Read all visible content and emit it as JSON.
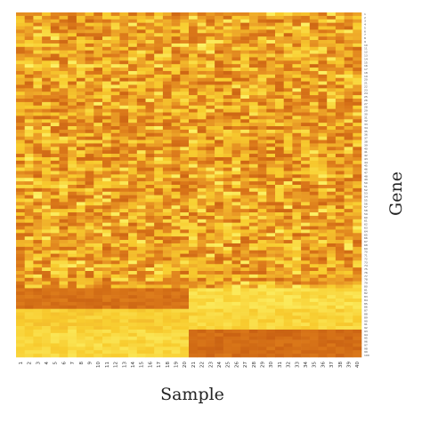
{
  "chart_data": {
    "type": "heatmap",
    "title": "",
    "xlabel": "Sample",
    "ylabel": "Gene",
    "x_categories": [
      "1",
      "2",
      "3",
      "4",
      "5",
      "6",
      "7",
      "8",
      "9",
      "10",
      "11",
      "12",
      "13",
      "14",
      "15",
      "16",
      "17",
      "18",
      "19",
      "20",
      "21",
      "22",
      "23",
      "24",
      "25",
      "26",
      "27",
      "28",
      "29",
      "30",
      "31",
      "32",
      "33",
      "34",
      "35",
      "36",
      "37",
      "38",
      "39",
      "40"
    ],
    "y_categories": [
      "1",
      "2",
      "3",
      "4",
      "5",
      "6",
      "7",
      "8",
      "9",
      "10",
      "11",
      "12",
      "13",
      "14",
      "15",
      "16",
      "17",
      "18",
      "19",
      "20",
      "21",
      "22",
      "23",
      "24",
      "25",
      "26",
      "27",
      "28",
      "29",
      "30",
      "31",
      "32",
      "33",
      "34",
      "35",
      "36",
      "37",
      "38",
      "39",
      "40",
      "41",
      "42",
      "43",
      "44",
      "45",
      "46",
      "47",
      "48",
      "49",
      "50",
      "51",
      "52",
      "53",
      "54",
      "55",
      "56",
      "57",
      "58",
      "59",
      "60",
      "61",
      "62",
      "63",
      "64",
      "65",
      "66",
      "67",
      "68",
      "69",
      "70",
      "71",
      "72",
      "73",
      "74",
      "75",
      "76",
      "77",
      "78",
      "79",
      "80",
      "81",
      "82",
      "83",
      "84",
      "85",
      "86",
      "87",
      "88",
      "89",
      "90",
      "91",
      "92",
      "93",
      "94",
      "95",
      "96",
      "97",
      "98",
      "99",
      "100"
    ],
    "colormap": [
      "#fcf46a",
      "#f8cc2e",
      "#eda428",
      "#dc7a1a",
      "#c45a10"
    ],
    "low_color": "#fcf46a",
    "high_color": "#c45a10",
    "value_range": [
      0,
      1
    ],
    "blocks": [
      {
        "genes": [
          1,
          80
        ],
        "samples": [
          1,
          40
        ],
        "pattern": "random",
        "mean": 0.52
      },
      {
        "genes": [
          81,
          86
        ],
        "samples": [
          1,
          20
        ],
        "pattern": "high",
        "mean": 0.82
      },
      {
        "genes": [
          81,
          86
        ],
        "samples": [
          21,
          40
        ],
        "pattern": "low",
        "mean": 0.15
      },
      {
        "genes": [
          87,
          92
        ],
        "samples": [
          1,
          20
        ],
        "pattern": "low",
        "mean": 0.25
      },
      {
        "genes": [
          87,
          92
        ],
        "samples": [
          21,
          40
        ],
        "pattern": "low",
        "mean": 0.2
      },
      {
        "genes": [
          93,
          100
        ],
        "samples": [
          1,
          20
        ],
        "pattern": "low",
        "mean": 0.18
      },
      {
        "genes": [
          93,
          100
        ],
        "samples": [
          21,
          40
        ],
        "pattern": "high",
        "mean": 0.85
      }
    ],
    "grid": false,
    "legend": "none"
  }
}
